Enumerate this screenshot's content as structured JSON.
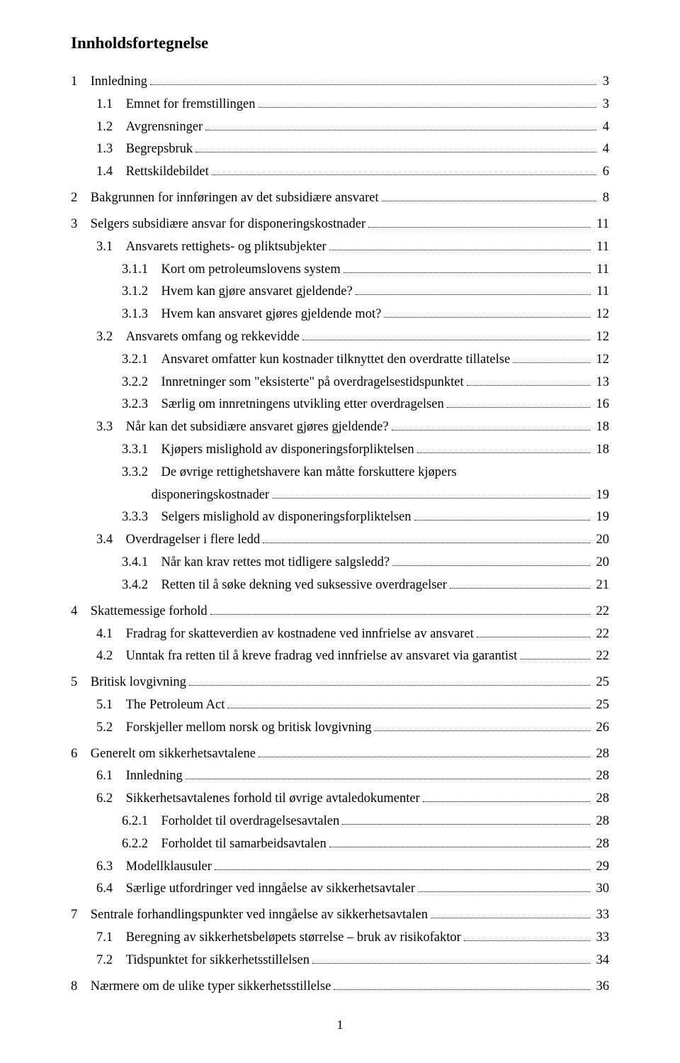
{
  "title": "Innholdsfortegnelse",
  "page_number": "1",
  "font_family": "Times New Roman",
  "title_fontsize": 23,
  "body_fontsize": 18.5,
  "text_color": "#000000",
  "background_color": "#ffffff",
  "toc": [
    {
      "level": 0,
      "num": "1",
      "text": "Innledning",
      "page": "3",
      "gap": true
    },
    {
      "level": 1,
      "num": "1.1",
      "text": "Emnet for fremstillingen",
      "page": "3"
    },
    {
      "level": 1,
      "num": "1.2",
      "text": "Avgrensninger",
      "page": "4"
    },
    {
      "level": 1,
      "num": "1.3",
      "text": "Begrepsbruk",
      "page": "4"
    },
    {
      "level": 1,
      "num": "1.4",
      "text": "Rettskildebildet",
      "page": "6"
    },
    {
      "level": 0,
      "num": "2",
      "text": "Bakgrunnen for innføringen av det subsidiære ansvaret",
      "page": "8",
      "gap": true
    },
    {
      "level": 0,
      "num": "3",
      "text": "Selgers subsidiære ansvar for disponeringskostnader",
      "page": "11",
      "gap": true
    },
    {
      "level": 1,
      "num": "3.1",
      "text": "Ansvarets rettighets- og pliktsubjekter",
      "page": "11"
    },
    {
      "level": 2,
      "num": "3.1.1",
      "text": "Kort om petroleumslovens system",
      "page": "11"
    },
    {
      "level": 2,
      "num": "3.1.2",
      "text": "Hvem kan gjøre ansvaret gjeldende?",
      "page": "11"
    },
    {
      "level": 2,
      "num": "3.1.3",
      "text": "Hvem kan ansvaret gjøres gjeldende mot?",
      "page": "12"
    },
    {
      "level": 1,
      "num": "3.2",
      "text": "Ansvarets omfang og rekkevidde",
      "page": "12"
    },
    {
      "level": 2,
      "num": "3.2.1",
      "text": "Ansvaret omfatter kun kostnader tilknyttet den overdratte tillatelse",
      "page": "12"
    },
    {
      "level": 2,
      "num": "3.2.2",
      "text": "Innretninger som \"eksisterte\" på overdragelsestidspunktet",
      "page": "13"
    },
    {
      "level": 2,
      "num": "3.2.3",
      "text": "Særlig om innretningens utvikling etter overdragelsen",
      "page": "16"
    },
    {
      "level": 1,
      "num": "3.3",
      "text": "Når kan det subsidiære ansvaret gjøres gjeldende?",
      "page": "18"
    },
    {
      "level": 2,
      "num": "3.3.1",
      "text": "Kjøpers mislighold av disponeringsforpliktelsen",
      "page": "18"
    },
    {
      "level": 2,
      "num": "3.3.2",
      "text": "De øvrige rettighetshavere kan måtte forskuttere kjøpers disponeringskostnader",
      "page": "19",
      "wrap": true
    },
    {
      "level": 2,
      "num": "3.3.3",
      "text": "Selgers mislighold av disponeringsforpliktelsen",
      "page": "19"
    },
    {
      "level": 1,
      "num": "3.4",
      "text": "Overdragelser i flere ledd",
      "page": "20"
    },
    {
      "level": 2,
      "num": "3.4.1",
      "text": "Når kan krav rettes mot tidligere salgsledd?",
      "page": "20"
    },
    {
      "level": 2,
      "num": "3.4.2",
      "text": "Retten til å søke dekning ved suksessive overdragelser",
      "page": "21"
    },
    {
      "level": 0,
      "num": "4",
      "text": "Skattemessige forhold",
      "page": "22",
      "gap": true
    },
    {
      "level": 1,
      "num": "4.1",
      "text": "Fradrag for skatteverdien av kostnadene ved innfrielse av ansvaret",
      "page": "22"
    },
    {
      "level": 1,
      "num": "4.2",
      "text": "Unntak fra retten til å kreve fradrag ved innfrielse av ansvaret via garantist",
      "page": "22"
    },
    {
      "level": 0,
      "num": "5",
      "text": "Britisk lovgivning",
      "page": "25",
      "gap": true
    },
    {
      "level": 1,
      "num": "5.1",
      "text": "The Petroleum Act",
      "page": "25"
    },
    {
      "level": 1,
      "num": "5.2",
      "text": "Forskjeller mellom norsk og britisk lovgivning",
      "page": "26"
    },
    {
      "level": 0,
      "num": "6",
      "text": "Generelt om sikkerhetsavtalene",
      "page": "28",
      "gap": true
    },
    {
      "level": 1,
      "num": "6.1",
      "text": "Innledning",
      "page": "28"
    },
    {
      "level": 1,
      "num": "6.2",
      "text": "Sikkerhetsavtalenes forhold til øvrige avtaledokumenter",
      "page": "28"
    },
    {
      "level": 2,
      "num": "6.2.1",
      "text": "Forholdet til overdragelsesavtalen",
      "page": "28"
    },
    {
      "level": 2,
      "num": "6.2.2",
      "text": "Forholdet til samarbeidsavtalen",
      "page": "28"
    },
    {
      "level": 1,
      "num": "6.3",
      "text": "Modellklausuler",
      "page": "29"
    },
    {
      "level": 1,
      "num": "6.4",
      "text": "Særlige utfordringer ved inngåelse av sikkerhetsavtaler",
      "page": "30"
    },
    {
      "level": 0,
      "num": "7",
      "text": "Sentrale forhandlingspunkter ved inngåelse av sikkerhetsavtalen",
      "page": "33",
      "gap": true
    },
    {
      "level": 1,
      "num": "7.1",
      "text": "Beregning av sikkerhetsbeløpets størrelse – bruk av risikofaktor",
      "page": "33"
    },
    {
      "level": 1,
      "num": "7.2",
      "text": "Tidspunktet for sikkerhetsstillelsen",
      "page": "34"
    },
    {
      "level": 0,
      "num": "8",
      "text": "Nærmere om de ulike typer sikkerhetsstillelse",
      "page": "36",
      "gap": true
    }
  ]
}
